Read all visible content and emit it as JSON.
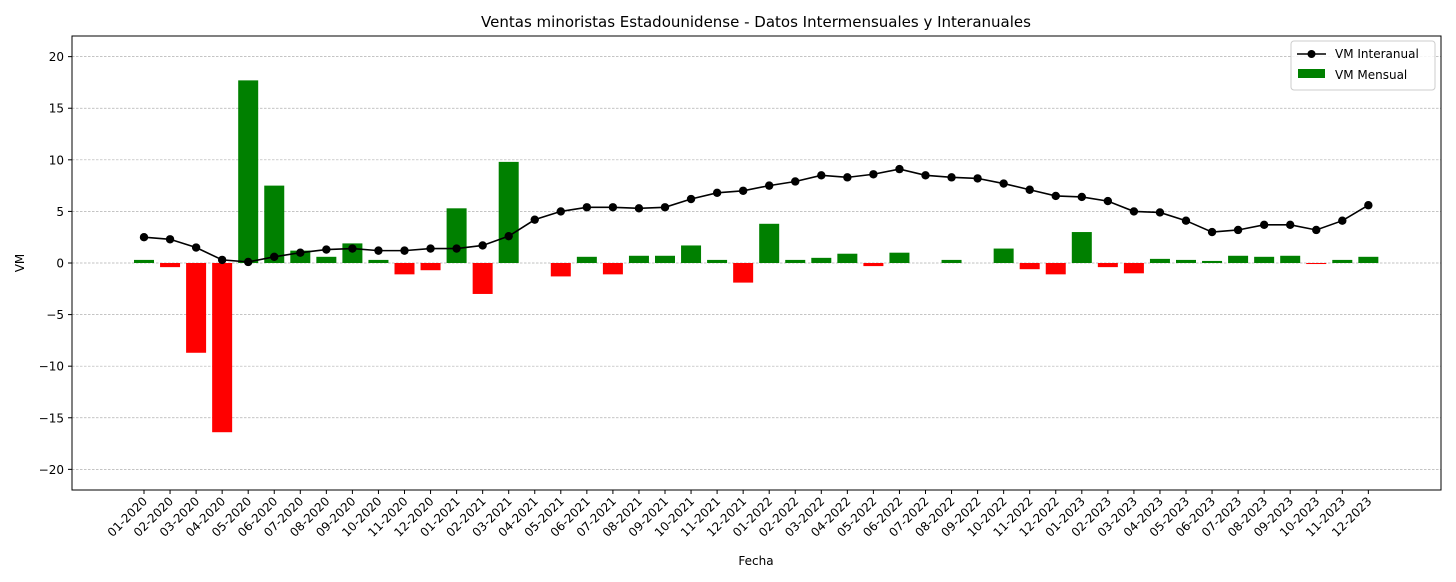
{
  "chart_data": {
    "type": "bar",
    "title": "Ventas minoristas Estadounidense - Datos Intermensuales y Interanuales",
    "xlabel": "Fecha",
    "ylabel": "VM",
    "ylim": [
      -22,
      22
    ],
    "yticks": [
      20,
      15,
      10,
      5,
      0,
      -5,
      -10,
      -15,
      -20
    ],
    "ytick_labels": [
      "20",
      "15",
      "10",
      "5",
      "0",
      "−5",
      "−10",
      "−15",
      "−20"
    ],
    "grid": "horizontal dashed",
    "legend_placement": "top-right",
    "categories": [
      "01-2020",
      "02-2020",
      "03-2020",
      "04-2020",
      "05-2020",
      "06-2020",
      "07-2020",
      "08-2020",
      "09-2020",
      "10-2020",
      "11-2020",
      "12-2020",
      "01-2021",
      "02-2021",
      "03-2021",
      "04-2021",
      "05-2021",
      "06-2021",
      "07-2021",
      "08-2021",
      "09-2021",
      "10-2021",
      "11-2021",
      "12-2021",
      "01-2022",
      "02-2022",
      "03-2022",
      "04-2022",
      "05-2022",
      "06-2022",
      "07-2022",
      "08-2022",
      "09-2022",
      "10-2022",
      "11-2022",
      "12-2022",
      "01-2023",
      "02-2023",
      "03-2023",
      "04-2023",
      "05-2023",
      "06-2023",
      "07-2023",
      "08-2023",
      "09-2023",
      "10-2023",
      "11-2023",
      "12-2023"
    ],
    "series": [
      {
        "name": "VM Mensual",
        "type": "bar",
        "positive_color": "#008000",
        "negative_color": "#ff0000",
        "values": [
          0.3,
          -0.4,
          -8.7,
          -16.4,
          17.7,
          7.5,
          1.2,
          0.6,
          1.9,
          0.3,
          -1.1,
          -0.7,
          5.3,
          -3.0,
          9.8,
          0.0,
          -1.3,
          0.6,
          -1.1,
          0.7,
          0.7,
          1.7,
          0.3,
          -1.9,
          3.8,
          0.3,
          0.5,
          0.9,
          -0.3,
          1.0,
          0.0,
          0.3,
          0.0,
          1.4,
          -0.6,
          -1.1,
          3.0,
          -0.4,
          -1.0,
          0.4,
          0.3,
          0.2,
          0.7,
          0.6,
          0.7,
          -0.1,
          0.3,
          0.6
        ]
      },
      {
        "name": "VM Interanual",
        "type": "line",
        "color": "#000000",
        "values": [
          2.5,
          2.3,
          1.5,
          0.3,
          0.1,
          0.6,
          1.0,
          1.3,
          1.4,
          1.2,
          1.2,
          1.4,
          1.4,
          1.7,
          2.6,
          4.2,
          5.0,
          5.4,
          5.4,
          5.3,
          5.4,
          6.2,
          6.8,
          7.0,
          7.5,
          7.9,
          8.5,
          8.3,
          8.6,
          9.1,
          8.5,
          8.3,
          8.2,
          7.7,
          7.1,
          6.5,
          6.4,
          6.0,
          5.0,
          4.9,
          4.1,
          3.0,
          3.2,
          3.7,
          3.7,
          3.2,
          4.1,
          5.6
        ]
      }
    ]
  }
}
